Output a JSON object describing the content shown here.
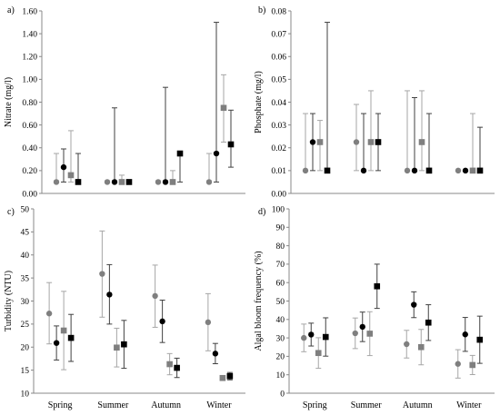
{
  "colors": {
    "series_a": "#7f7f7f",
    "series_b": "#000000",
    "series_c": "#7f7f7f",
    "series_d": "#000000",
    "errorbar_light": "#a6a6a6",
    "errorbar_dark": "#404040",
    "axis": "#888888"
  },
  "chart_data": [
    {
      "panel": "a)",
      "type": "scatter",
      "ylabel": "Nitrate (mg/l)",
      "ylim": [
        0,
        1.6
      ],
      "yticks": [
        "0.00",
        "0.20",
        "0.40",
        "0.60",
        "0.80",
        "1.00",
        "1.20",
        "1.40",
        "1.60"
      ],
      "categories": [
        "",
        "",
        "",
        ""
      ],
      "series": [
        {
          "marker": "circle",
          "tone": "gray",
          "values": [
            0.1,
            0.1,
            0.1,
            0.1
          ],
          "err_low": [
            0.1,
            0.1,
            0.1,
            0.1
          ],
          "err_high": [
            0.35,
            0.1,
            0.1,
            0.35
          ]
        },
        {
          "marker": "circle",
          "tone": "black",
          "values": [
            0.23,
            0.1,
            0.1,
            0.35
          ],
          "err_low": [
            0.1,
            0.1,
            0.1,
            0.1
          ],
          "err_high": [
            0.39,
            0.75,
            0.93,
            1.5
          ]
        },
        {
          "marker": "square",
          "tone": "gray",
          "values": [
            0.16,
            0.1,
            0.1,
            0.75
          ],
          "err_low": [
            0.1,
            0.1,
            0.1,
            0.45
          ],
          "err_high": [
            0.55,
            0.16,
            0.2,
            1.04
          ]
        },
        {
          "marker": "square",
          "tone": "black",
          "values": [
            0.1,
            0.1,
            0.35,
            0.43
          ],
          "err_low": [
            0.1,
            0.1,
            0.1,
            0.23
          ],
          "err_high": [
            0.35,
            0.1,
            0.35,
            0.73
          ]
        }
      ]
    },
    {
      "panel": "b)",
      "type": "scatter",
      "ylabel": "Phosphate (mg/l)",
      "ylim": [
        0,
        0.08
      ],
      "yticks": [
        "0.00",
        "0.01",
        "0.02",
        "0.03",
        "0.04",
        "0.05",
        "0.06",
        "0.07",
        "0.08"
      ],
      "categories": [
        "",
        "",
        "",
        ""
      ],
      "series": [
        {
          "marker": "circle",
          "tone": "gray",
          "values": [
            0.01,
            0.0225,
            0.01,
            0.01
          ],
          "err_low": [
            0.01,
            0.01,
            0.01,
            0.01
          ],
          "err_high": [
            0.035,
            0.039,
            0.045,
            0.01
          ]
        },
        {
          "marker": "circle",
          "tone": "black",
          "values": [
            0.0225,
            0.01,
            0.01,
            0.01
          ],
          "err_low": [
            0.01,
            0.01,
            0.01,
            0.01
          ],
          "err_high": [
            0.035,
            0.035,
            0.042,
            0.01
          ]
        },
        {
          "marker": "square",
          "tone": "gray",
          "values": [
            0.0225,
            0.0225,
            0.0225,
            0.01
          ],
          "err_low": [
            0.01,
            0.01,
            0.01,
            0.01
          ],
          "err_high": [
            0.032,
            0.045,
            0.045,
            0.035
          ]
        },
        {
          "marker": "square",
          "tone": "black",
          "values": [
            0.01,
            0.0225,
            0.01,
            0.01
          ],
          "err_low": [
            0.01,
            0.01,
            0.01,
            0.01
          ],
          "err_high": [
            0.075,
            0.035,
            0.035,
            0.029
          ]
        }
      ]
    },
    {
      "panel": "c)",
      "type": "scatter",
      "ylabel": "Turbidity (NTU)",
      "ylim": [
        10,
        50
      ],
      "yticks": [
        "10",
        "15",
        "20",
        "25",
        "30",
        "35",
        "40",
        "45",
        "50"
      ],
      "categories": [
        "Spring",
        "Summer",
        "Autumn",
        "Winter"
      ],
      "series": [
        {
          "marker": "circle",
          "tone": "gray",
          "values": [
            27.3,
            35.9,
            31.1,
            25.4
          ],
          "err_low": [
            20.7,
            26.5,
            24.3,
            19.2
          ],
          "err_high": [
            34.0,
            45.2,
            37.8,
            31.6
          ]
        },
        {
          "marker": "circle",
          "tone": "black",
          "values": [
            20.9,
            31.4,
            25.6,
            18.6
          ],
          "err_low": [
            17.2,
            25.0,
            21.0,
            16.4
          ],
          "err_high": [
            24.6,
            37.9,
            30.2,
            20.8
          ]
        },
        {
          "marker": "square",
          "tone": "gray",
          "values": [
            23.6,
            19.9,
            16.3,
            13.3
          ],
          "err_low": [
            15.1,
            15.7,
            14.0,
            12.8
          ],
          "err_high": [
            32.1,
            24.1,
            18.6,
            13.8
          ]
        },
        {
          "marker": "square",
          "tone": "black",
          "values": [
            22.0,
            20.6,
            15.5,
            13.7
          ],
          "err_low": [
            16.9,
            15.4,
            13.4,
            12.9
          ],
          "err_high": [
            27.1,
            25.8,
            17.6,
            14.5
          ]
        }
      ]
    },
    {
      "panel": "d)",
      "type": "scatter",
      "ylabel": "Algal bloom frequency (%)",
      "ylim": [
        0,
        100
      ],
      "yticks": [
        "0",
        "10",
        "20",
        "30",
        "40",
        "50",
        "60",
        "70",
        "80",
        "90",
        "100"
      ],
      "categories": [
        "Spring",
        "Summer",
        "Autumn",
        "Winter"
      ],
      "series": [
        {
          "marker": "circle",
          "tone": "gray",
          "values": [
            30.0,
            32.5,
            26.6,
            15.9
          ],
          "err_low": [
            22.5,
            24.2,
            19.1,
            8.2
          ],
          "err_high": [
            37.5,
            40.8,
            34.1,
            23.6
          ]
        },
        {
          "marker": "circle",
          "tone": "black",
          "values": [
            31.8,
            36.0,
            48.0,
            31.9
          ],
          "err_low": [
            25.6,
            28.0,
            41.0,
            22.7
          ],
          "err_high": [
            38.0,
            44.0,
            55.0,
            41.1
          ]
        },
        {
          "marker": "square",
          "tone": "gray",
          "values": [
            21.8,
            32.3,
            25.0,
            15.3
          ],
          "err_low": [
            13.5,
            20.4,
            15.4,
            10.1
          ],
          "err_high": [
            30.1,
            44.2,
            34.6,
            20.5
          ]
        },
        {
          "marker": "square",
          "tone": "black",
          "values": [
            30.5,
            58.0,
            38.3,
            29.0
          ],
          "err_low": [
            20.1,
            46.0,
            28.6,
            16.2
          ],
          "err_high": [
            40.9,
            70.0,
            48.0,
            41.8
          ]
        }
      ]
    }
  ]
}
